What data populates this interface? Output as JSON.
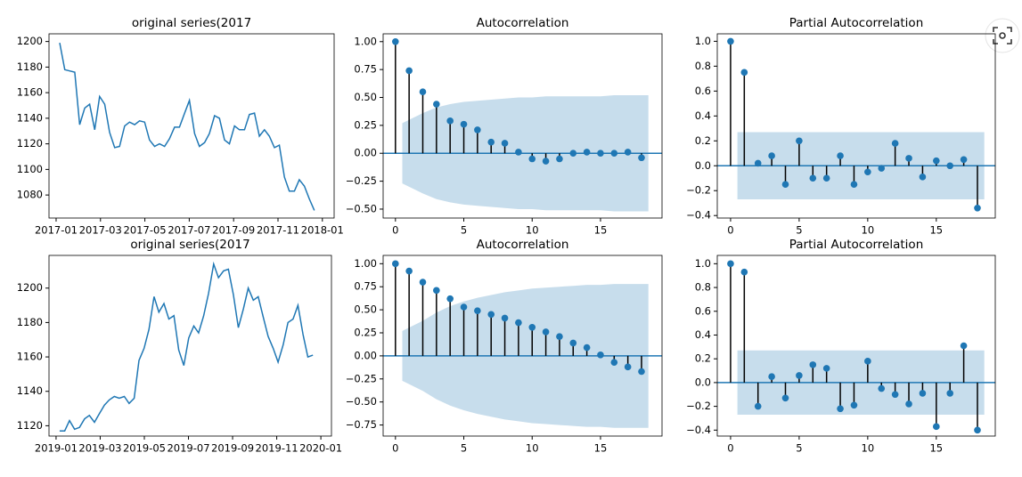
{
  "chart_data": [
    {
      "type": "line",
      "title": "original series(2017",
      "color": "#1f77b4",
      "x": [
        0.16,
        0.39,
        0.61,
        0.84,
        1.06,
        1.29,
        1.51,
        1.74,
        1.96,
        2.19,
        2.41,
        2.64,
        2.86,
        3.09,
        3.31,
        3.54,
        3.76,
        3.99,
        4.21,
        4.44,
        4.66,
        4.89,
        5.11,
        5.34,
        5.56,
        5.79,
        6.01,
        6.24,
        6.46,
        6.69,
        6.91,
        7.14,
        7.36,
        7.59,
        7.81,
        8.04,
        8.26,
        8.49,
        8.71,
        8.94,
        9.16,
        9.39,
        9.61,
        9.84,
        10.06,
        10.29,
        10.51,
        10.74,
        10.96,
        11.19,
        11.41,
        11.64
      ],
      "values": [
        1199,
        1178,
        1177,
        1176,
        1135,
        1148,
        1151,
        1131,
        1157,
        1151,
        1129,
        1117,
        1118,
        1134,
        1137,
        1135,
        1138,
        1137,
        1123,
        1118,
        1120,
        1118,
        1124,
        1133,
        1133,
        1144,
        1154,
        1128,
        1118,
        1121,
        1128,
        1142,
        1140,
        1123,
        1120,
        1134,
        1131,
        1131,
        1143,
        1144,
        1126,
        1131,
        1126,
        1117,
        1119,
        1094,
        1083,
        1083,
        1092,
        1087,
        1077,
        1068
      ],
      "xlim": [
        -0.32,
        12.53
      ],
      "xticks": [
        {
          "value": 0,
          "label": "2017-01"
        },
        {
          "value": 2,
          "label": "2017-03"
        },
        {
          "value": 4,
          "label": "2017-05"
        },
        {
          "value": 6,
          "label": "2017-07"
        },
        {
          "value": 8,
          "label": "2017-09"
        },
        {
          "value": 10,
          "label": "2017-11"
        },
        {
          "value": 12,
          "label": "2018-01"
        }
      ],
      "ylim": [
        1062,
        1206
      ],
      "yticks": [
        1080,
        1100,
        1120,
        1140,
        1160,
        1180,
        1200
      ]
    },
    {
      "type": "stem",
      "title": "Autocorrelation",
      "color": "#1f77b4",
      "x": [
        0,
        1,
        2,
        3,
        4,
        5,
        6,
        7,
        8,
        9,
        10,
        11,
        12,
        13,
        14,
        15,
        16,
        17,
        18
      ],
      "values": [
        1.0,
        0.74,
        0.55,
        0.44,
        0.29,
        0.26,
        0.21,
        0.1,
        0.09,
        0.01,
        -0.05,
        -0.07,
        -0.05,
        0.0,
        0.01,
        0.0,
        0.0,
        0.01,
        -0.04
      ],
      "conf": [
        0.27,
        0.36,
        0.41,
        0.44,
        0.46,
        0.47,
        0.48,
        0.49,
        0.5,
        0.5,
        0.51,
        0.51,
        0.51,
        0.51,
        0.51,
        0.52,
        0.52,
        0.52
      ],
      "xlim": [
        -0.9,
        19.5
      ],
      "xticks": [
        0,
        5,
        10,
        15
      ],
      "ylim": [
        -0.58,
        1.07
      ],
      "yticks": [
        {
          "value": -0.5,
          "label": "−0.50"
        },
        {
          "value": -0.25,
          "label": "−0.25"
        },
        {
          "value": 0,
          "label": "0.00"
        },
        {
          "value": 0.25,
          "label": "0.25"
        },
        {
          "value": 0.5,
          "label": "0.50"
        },
        {
          "value": 0.75,
          "label": "0.75"
        },
        {
          "value": 1,
          "label": "1.00"
        }
      ]
    },
    {
      "type": "stem",
      "title": "Partial Autocorrelation",
      "color": "#1f77b4",
      "x": [
        0,
        1,
        2,
        3,
        4,
        5,
        6,
        7,
        8,
        9,
        10,
        11,
        12,
        13,
        14,
        15,
        16,
        17,
        18
      ],
      "values": [
        1.0,
        0.75,
        0.02,
        0.08,
        -0.15,
        0.2,
        -0.1,
        -0.1,
        0.08,
        -0.15,
        -0.05,
        -0.02,
        0.18,
        0.06,
        -0.09,
        0.04,
        0.0,
        0.05,
        -0.34
      ],
      "conf": [
        0.27,
        0.27,
        0.27,
        0.27,
        0.27,
        0.27,
        0.27,
        0.27,
        0.27,
        0.27,
        0.27,
        0.27,
        0.27,
        0.27,
        0.27,
        0.27,
        0.27,
        0.27
      ],
      "xlim": [
        -0.97,
        19.3
      ],
      "xticks": [
        0,
        5,
        10,
        15
      ],
      "ylim": [
        -0.42,
        1.06
      ],
      "yticks": [
        {
          "value": -0.4,
          "label": "−0.4"
        },
        {
          "value": -0.2,
          "label": "−0.2"
        },
        {
          "value": 0,
          "label": "0.0"
        },
        {
          "value": 0.2,
          "label": "0.2"
        },
        {
          "value": 0.4,
          "label": "0.4"
        },
        {
          "value": 0.6,
          "label": "0.6"
        },
        {
          "value": 0.8,
          "label": "0.8"
        },
        {
          "value": 1,
          "label": "1.0"
        }
      ]
    },
    {
      "type": "line",
      "title": "original series(2017",
      "color": "#1f77b4",
      "x": [
        0.16,
        0.39,
        0.61,
        0.84,
        1.06,
        1.29,
        1.51,
        1.74,
        1.96,
        2.19,
        2.41,
        2.64,
        2.86,
        3.09,
        3.31,
        3.54,
        3.76,
        3.99,
        4.21,
        4.44,
        4.66,
        4.89,
        5.11,
        5.34,
        5.56,
        5.79,
        6.01,
        6.24,
        6.46,
        6.69,
        6.91,
        7.14,
        7.36,
        7.59,
        7.81,
        8.04,
        8.26,
        8.49,
        8.71,
        8.94,
        9.16,
        9.39,
        9.61,
        9.84,
        10.06,
        10.29,
        10.51,
        10.74,
        10.96,
        11.19,
        11.41,
        11.64
      ],
      "values": [
        1117,
        1117,
        1123,
        1118,
        1119,
        1124,
        1126,
        1122,
        1127,
        1132,
        1135,
        1137,
        1136,
        1137,
        1133,
        1136,
        1158,
        1165,
        1176,
        1195,
        1186,
        1191,
        1182,
        1184,
        1164,
        1155,
        1171,
        1178,
        1174,
        1184,
        1197,
        1214,
        1206,
        1210,
        1211,
        1196,
        1177,
        1188,
        1200,
        1193,
        1195,
        1183,
        1172,
        1165,
        1157,
        1167,
        1180,
        1182,
        1190,
        1173,
        1160,
        1161
      ],
      "xlim": [
        -0.32,
        12.48
      ],
      "xticks": [
        {
          "value": 0,
          "label": "2019-01"
        },
        {
          "value": 2,
          "label": "2019-03"
        },
        {
          "value": 4,
          "label": "2019-05"
        },
        {
          "value": 6,
          "label": "2019-07"
        },
        {
          "value": 8,
          "label": "2019-09"
        },
        {
          "value": 10,
          "label": "2019-11"
        },
        {
          "value": 12,
          "label": "2020-01"
        }
      ],
      "ylim": [
        1114,
        1219
      ],
      "yticks": [
        1120,
        1140,
        1160,
        1180,
        1200
      ]
    },
    {
      "type": "stem",
      "title": "Autocorrelation",
      "color": "#1f77b4",
      "x": [
        0,
        1,
        2,
        3,
        4,
        5,
        6,
        7,
        8,
        9,
        10,
        11,
        12,
        13,
        14,
        15,
        16,
        17,
        18
      ],
      "values": [
        1.0,
        0.92,
        0.8,
        0.71,
        0.62,
        0.53,
        0.49,
        0.45,
        0.41,
        0.36,
        0.31,
        0.26,
        0.21,
        0.14,
        0.09,
        0.01,
        -0.07,
        -0.12,
        -0.17
      ],
      "conf": [
        0.27,
        0.38,
        0.47,
        0.54,
        0.59,
        0.63,
        0.66,
        0.69,
        0.71,
        0.73,
        0.74,
        0.75,
        0.76,
        0.77,
        0.77,
        0.78,
        0.78,
        0.78
      ],
      "xlim": [
        -0.9,
        19.5
      ],
      "xticks": [
        0,
        5,
        10,
        15
      ],
      "ylim": [
        -0.87,
        1.09
      ],
      "yticks": [
        {
          "value": -0.75,
          "label": "−0.75"
        },
        {
          "value": -0.5,
          "label": "−0.50"
        },
        {
          "value": -0.25,
          "label": "−0.25"
        },
        {
          "value": 0,
          "label": "0.00"
        },
        {
          "value": 0.25,
          "label": "0.25"
        },
        {
          "value": 0.5,
          "label": "0.50"
        },
        {
          "value": 0.75,
          "label": "0.75"
        },
        {
          "value": 1,
          "label": "1.00"
        }
      ]
    },
    {
      "type": "stem",
      "title": "Partial Autocorrelation",
      "color": "#1f77b4",
      "x": [
        0,
        1,
        2,
        3,
        4,
        5,
        6,
        7,
        8,
        9,
        10,
        11,
        12,
        13,
        14,
        15,
        16,
        17,
        18
      ],
      "values": [
        1.0,
        0.93,
        -0.2,
        0.05,
        -0.13,
        0.06,
        0.15,
        0.12,
        -0.22,
        -0.19,
        0.18,
        -0.05,
        -0.1,
        -0.18,
        -0.09,
        -0.37,
        -0.09,
        0.31,
        -0.4
      ],
      "conf": [
        0.27,
        0.27,
        0.27,
        0.27,
        0.27,
        0.27,
        0.27,
        0.27,
        0.27,
        0.27,
        0.27,
        0.27,
        0.27,
        0.27,
        0.27,
        0.27,
        0.27,
        0.27
      ],
      "xlim": [
        -0.97,
        19.3
      ],
      "xticks": [
        0,
        5,
        10,
        15
      ],
      "ylim": [
        -0.45,
        1.07
      ],
      "yticks": [
        {
          "value": -0.4,
          "label": "−0.4"
        },
        {
          "value": -0.2,
          "label": "−0.2"
        },
        {
          "value": 0,
          "label": "0.0"
        },
        {
          "value": 0.2,
          "label": "0.2"
        },
        {
          "value": 0.4,
          "label": "0.4"
        },
        {
          "value": 0.6,
          "label": "0.6"
        },
        {
          "value": 0.8,
          "label": "0.8"
        },
        {
          "value": 1,
          "label": "1.0"
        }
      ]
    }
  ]
}
